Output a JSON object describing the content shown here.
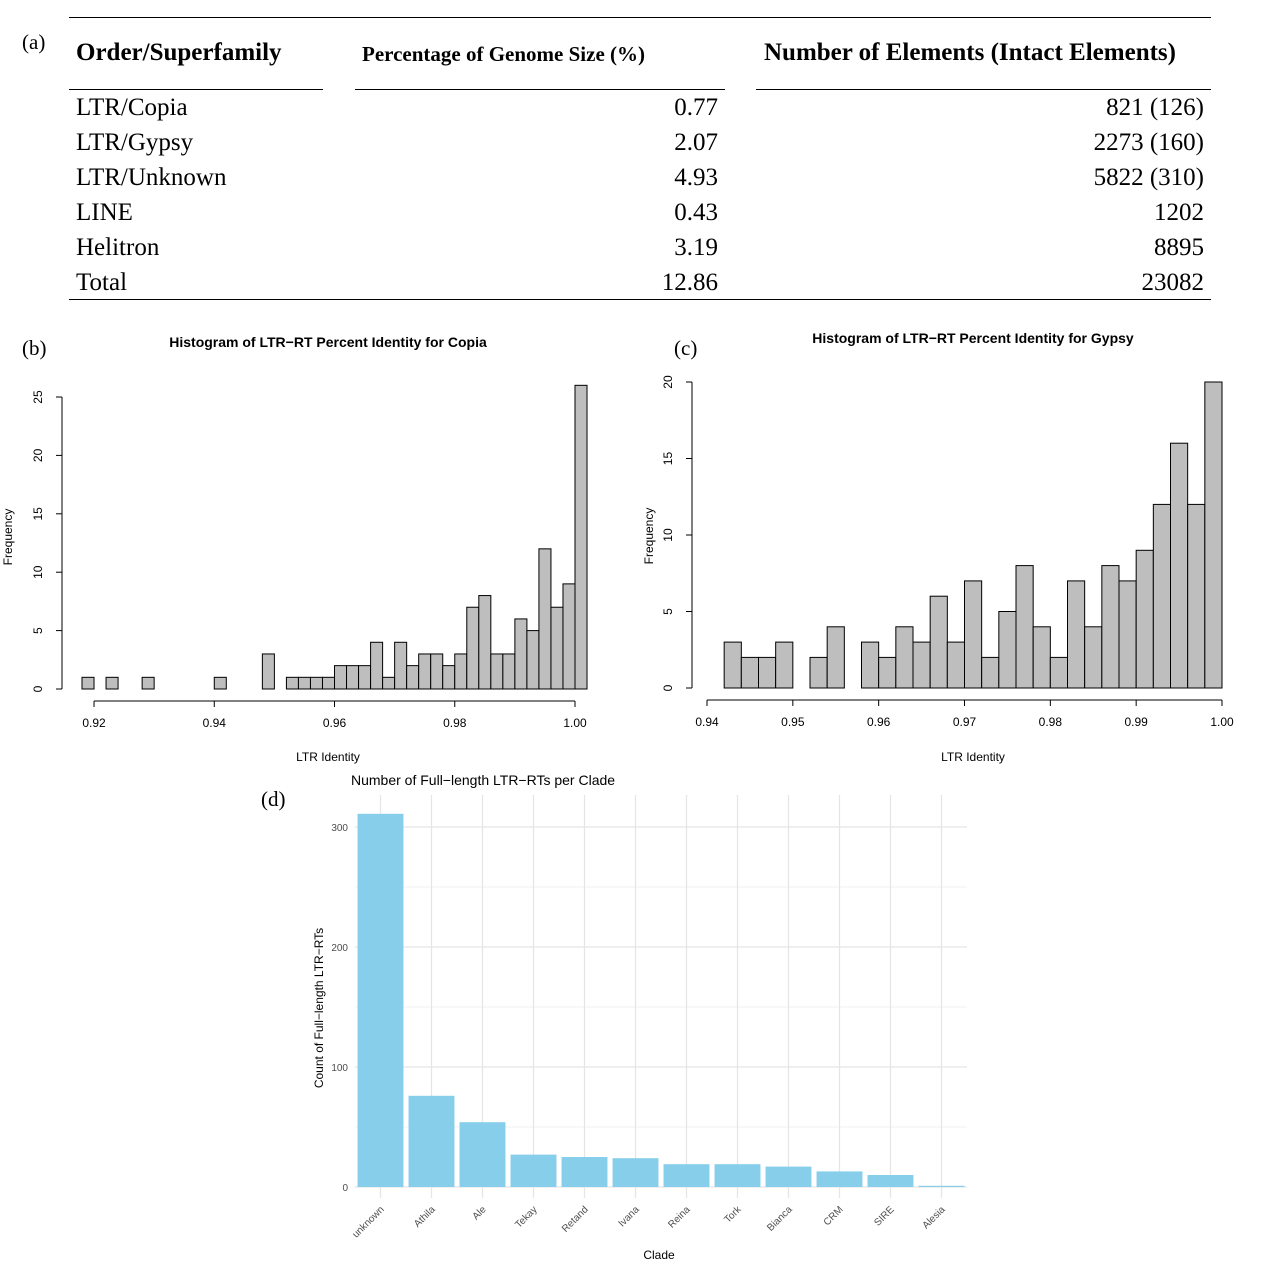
{
  "panels": {
    "a": "(a)",
    "b": "(b)",
    "c": "(c)",
    "d": "(d)"
  },
  "table": {
    "headers": [
      "Order/Superfamily",
      "Percentage of Genome Size (%)",
      "Number of Elements (Intact Elements)"
    ],
    "rows": [
      [
        "LTR/Copia",
        "0.77",
        "821 (126)"
      ],
      [
        "LTR/Gypsy",
        "2.07",
        "2273 (160)"
      ],
      [
        "LTR/Unknown",
        "4.93",
        "5822 (310)"
      ],
      [
        "LINE",
        "0.43",
        "1202"
      ],
      [
        "Helitron",
        "3.19",
        "8895"
      ],
      [
        "Total",
        "12.86",
        "23082"
      ]
    ]
  },
  "chart_data": [
    {
      "id": "copia",
      "type": "bar",
      "title": "Histogram of LTR−RT Percent Identity for Copia",
      "xlabel": "LTR Identity",
      "ylabel": "Frequency",
      "bin_width": 0.002,
      "bin_start": 0.918,
      "values": [
        1,
        0,
        1,
        0,
        0,
        1,
        0,
        0,
        0,
        0,
        0,
        1,
        0,
        0,
        0,
        3,
        0,
        1,
        1,
        1,
        1,
        2,
        2,
        2,
        4,
        1,
        4,
        2,
        3,
        3,
        2,
        3,
        7,
        8,
        3,
        3,
        6,
        5,
        12,
        7,
        9,
        26
      ],
      "xlim": [
        0.918,
        1.0
      ],
      "ylim": [
        0,
        26
      ],
      "xticks": [
        0.92,
        0.94,
        0.96,
        0.98,
        1.0
      ],
      "xtick_labels": [
        "0.92",
        "0.94",
        "0.96",
        "0.98",
        "1.00"
      ],
      "yticks": [
        0,
        5,
        10,
        15,
        20,
        25
      ],
      "ytick_labels": [
        "0",
        "5",
        "10",
        "15",
        "20",
        "25"
      ],
      "bar_color": "#bebebe"
    },
    {
      "id": "gypsy",
      "type": "bar",
      "title": "Histogram of LTR−RT Percent Identity for Gypsy",
      "xlabel": "LTR Identity",
      "ylabel": "Frequency",
      "bin_width": 0.002,
      "bin_start": 0.942,
      "values": [
        3,
        2,
        2,
        3,
        0,
        2,
        4,
        0,
        3,
        2,
        4,
        3,
        6,
        3,
        7,
        2,
        5,
        8,
        4,
        2,
        7,
        4,
        8,
        7,
        9,
        12,
        16,
        12,
        20
      ],
      "xlim": [
        0.94,
        1.0
      ],
      "ylim": [
        0,
        20
      ],
      "xticks": [
        0.94,
        0.95,
        0.96,
        0.97,
        0.98,
        0.99,
        1.0
      ],
      "xtick_labels": [
        "0.94",
        "0.95",
        "0.96",
        "0.97",
        "0.98",
        "0.99",
        "1.00"
      ],
      "yticks": [
        0,
        5,
        10,
        15,
        20
      ],
      "ytick_labels": [
        "0",
        "5",
        "10",
        "15",
        "20"
      ],
      "bar_color": "#bebebe"
    },
    {
      "id": "clade",
      "type": "bar",
      "title": "Number of Full−length LTR−RTs per Clade",
      "xlabel": "Clade",
      "ylabel": "Count of Full−length LTR−RTs",
      "categories": [
        "unknown",
        "Athila",
        "Ale",
        "Tekay",
        "Retand",
        "Ivana",
        "Reina",
        "Tork",
        "Bianca",
        "CRM",
        "SIRE",
        "Alesia"
      ],
      "values": [
        311,
        76,
        54,
        27,
        25,
        24,
        19,
        19,
        17,
        13,
        10,
        1
      ],
      "ylim": [
        0,
        311
      ],
      "yticks": [
        0,
        100,
        200,
        300
      ],
      "ytick_labels": [
        "0",
        "100",
        "200",
        "300"
      ],
      "bar_color": "#87ceeb",
      "grid": true
    }
  ]
}
